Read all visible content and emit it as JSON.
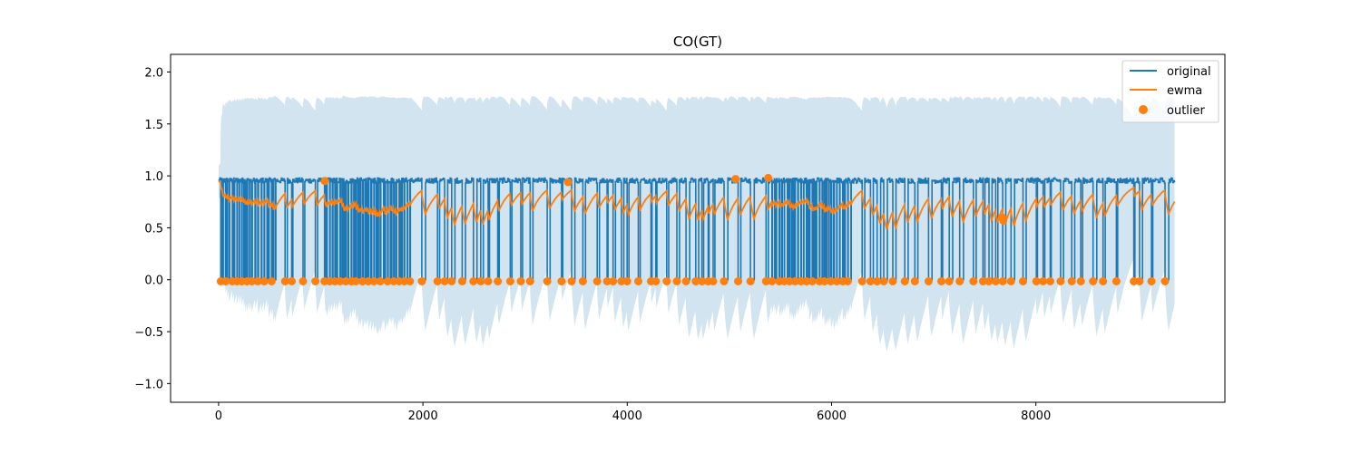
{
  "chart_data": {
    "type": "line",
    "title": "CO(GT)",
    "xlabel": "",
    "ylabel": "",
    "xlim": [
      -470,
      9850
    ],
    "ylim": [
      -1.18,
      2.17
    ],
    "x_ticks": [
      0,
      2000,
      4000,
      6000,
      8000
    ],
    "x_tick_labels": [
      "0",
      "2000",
      "4000",
      "6000",
      "8000"
    ],
    "y_ticks": [
      -1.0,
      -0.5,
      0.0,
      0.5,
      1.0,
      1.5,
      2.0
    ],
    "y_tick_labels": [
      "−1.0",
      "−0.5",
      "0.0",
      "0.5",
      "1.0",
      "1.5",
      "2.0"
    ],
    "grid": false,
    "legend_position": "top-right",
    "x_max": 9357,
    "blocks": [
      {
        "start": 0,
        "end": 560,
        "mode": "dense"
      },
      {
        "start": 560,
        "end": 1050,
        "mode": "sparse"
      },
      {
        "start": 1050,
        "end": 1450,
        "mode": "dense"
      },
      {
        "start": 1450,
        "end": 1880,
        "mode": "dense"
      },
      {
        "start": 1880,
        "end": 3100,
        "mode": "sparse"
      },
      {
        "start": 3100,
        "end": 5400,
        "mode": "sparse"
      },
      {
        "start": 5400,
        "end": 6200,
        "mode": "dense"
      },
      {
        "start": 6200,
        "end": 7100,
        "mode": "sparse"
      },
      {
        "start": 7100,
        "end": 7800,
        "mode": "sparse"
      },
      {
        "start": 7800,
        "end": 8850,
        "mode": "sparse"
      },
      {
        "start": 8850,
        "end": 9357,
        "mode": "sparse"
      }
    ],
    "outliers_high": [
      {
        "x": 1040,
        "y": 0.95
      },
      {
        "x": 3420,
        "y": 0.94
      },
      {
        "x": 5060,
        "y": 0.97
      },
      {
        "x": 5380,
        "y": 0.98
      },
      {
        "x": 7670,
        "y": 0.6
      },
      {
        "x": 7680,
        "y": 0.57
      }
    ],
    "series": [
      {
        "name": "original",
        "color": "#1f77b4"
      },
      {
        "name": "ewma",
        "color": "#ff7f0e"
      },
      {
        "name": "outlier",
        "color": "#ff7f0e"
      }
    ],
    "band_color": "#1f77b4",
    "band_opacity": 0.2
  }
}
